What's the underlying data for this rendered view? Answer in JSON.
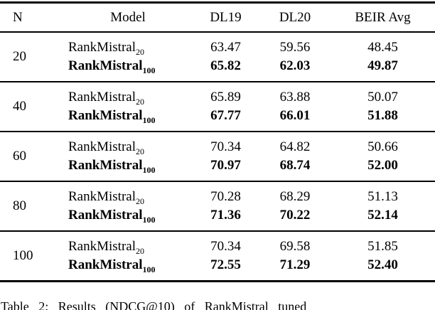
{
  "table": {
    "headers": {
      "n": "N",
      "model": "Model",
      "dl19": "DL19",
      "dl20": "DL20",
      "beir": "BEIR Avg"
    },
    "groups": [
      {
        "n": "20",
        "rows": [
          {
            "model": "RankMistral",
            "sub": "20",
            "dl19": "63.47",
            "dl20": "59.56",
            "beir": "48.45",
            "bold": false
          },
          {
            "model": "RankMistral",
            "sub": "100",
            "dl19": "65.82",
            "dl20": "62.03",
            "beir": "49.87",
            "bold": true
          }
        ]
      },
      {
        "n": "40",
        "rows": [
          {
            "model": "RankMistral",
            "sub": "20",
            "dl19": "65.89",
            "dl20": "63.88",
            "beir": "50.07",
            "bold": false
          },
          {
            "model": "RankMistral",
            "sub": "100",
            "dl19": "67.77",
            "dl20": "66.01",
            "beir": "51.88",
            "bold": true
          }
        ]
      },
      {
        "n": "60",
        "rows": [
          {
            "model": "RankMistral",
            "sub": "20",
            "dl19": "70.34",
            "dl20": "64.82",
            "beir": "50.66",
            "bold": false
          },
          {
            "model": "RankMistral",
            "sub": "100",
            "dl19": "70.97",
            "dl20": "68.74",
            "beir": "52.00",
            "bold": true
          }
        ]
      },
      {
        "n": "80",
        "rows": [
          {
            "model": "RankMistral",
            "sub": "20",
            "dl19": "70.28",
            "dl20": "68.29",
            "beir": "51.13",
            "bold": false
          },
          {
            "model": "RankMistral",
            "sub": "100",
            "dl19": "71.36",
            "dl20": "70.22",
            "beir": "52.14",
            "bold": true
          }
        ]
      },
      {
        "n": "100",
        "rows": [
          {
            "model": "RankMistral",
            "sub": "20",
            "dl19": "70.34",
            "dl20": "69.58",
            "beir": "51.85",
            "bold": false
          },
          {
            "model": "RankMistral",
            "sub": "100",
            "dl19": "72.55",
            "dl20": "71.29",
            "beir": "52.40",
            "bold": true
          }
        ]
      }
    ]
  },
  "caption": "Table 2: Results (NDCG@10) of RankMistral tuned",
  "colors": {
    "rule": "#000000",
    "text": "#000000",
    "background": "#ffffff"
  }
}
